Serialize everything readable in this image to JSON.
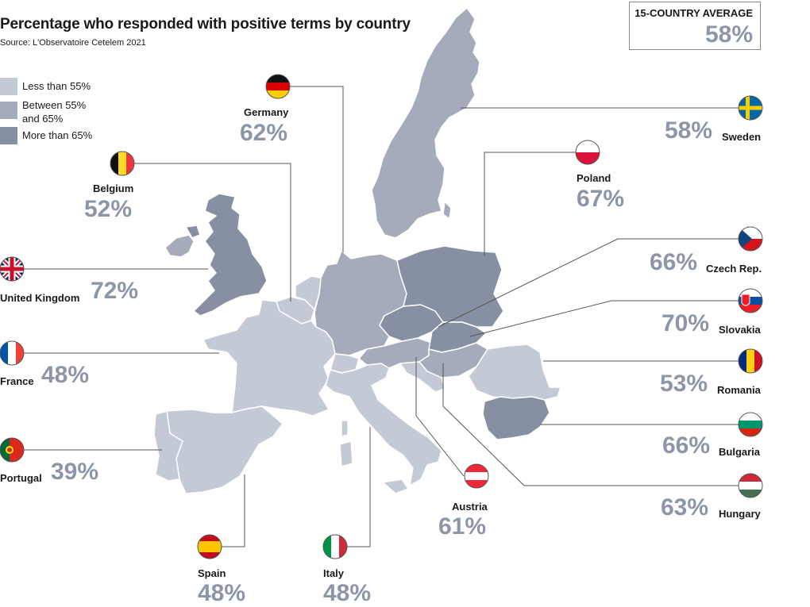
{
  "header": {
    "title": "Percentage who responded with positive terms by country",
    "source": "Source: L'Observatoire Cetelem 2021"
  },
  "average": {
    "label": "15-COUNTRY AVERAGE",
    "value": "58%"
  },
  "legend": [
    {
      "label": "Less than 55%",
      "color": "#c4c9d6"
    },
    {
      "label": "Between 55% and 65%",
      "color": "#a5abbb"
    },
    {
      "label": "More than 65%",
      "color": "#8790a2"
    }
  ],
  "colors": {
    "sea": "#ffffff",
    "value_text": "#8c96a8",
    "leader": "#555555",
    "border": "#ffffff"
  },
  "countries": {
    "germany": {
      "name": "Germany",
      "value": "62%",
      "flag_icon": "germany-flag-icon"
    },
    "belgium": {
      "name": "Belgium",
      "value": "52%",
      "flag_icon": "belgium-flag-icon"
    },
    "united_kingdom": {
      "name": "United Kingdom",
      "value": "72%",
      "flag_icon": "united-kingdom-flag-icon"
    },
    "france": {
      "name": "France",
      "value": "48%",
      "flag_icon": "france-flag-icon"
    },
    "portugal": {
      "name": "Portugal",
      "value": "39%",
      "flag_icon": "portugal-flag-icon"
    },
    "spain": {
      "name": "Spain",
      "value": "48%",
      "flag_icon": "spain-flag-icon"
    },
    "italy": {
      "name": "Italy",
      "value": "48%",
      "flag_icon": "italy-flag-icon"
    },
    "austria": {
      "name": "Austria",
      "value": "61%",
      "flag_icon": "austria-flag-icon"
    },
    "sweden": {
      "name": "Sweden",
      "value": "58%",
      "flag_icon": "sweden-flag-icon"
    },
    "poland": {
      "name": "Poland",
      "value": "67%",
      "flag_icon": "poland-flag-icon"
    },
    "czech": {
      "name": "Czech Rep.",
      "value": "66%",
      "flag_icon": "czech-flag-icon"
    },
    "slovakia": {
      "name": "Slovakia",
      "value": "70%",
      "flag_icon": "slovakia-flag-icon"
    },
    "romania": {
      "name": "Romania",
      "value": "53%",
      "flag_icon": "romania-flag-icon"
    },
    "bulgaria": {
      "name": "Bulgaria",
      "value": "66%",
      "flag_icon": "bulgaria-flag-icon"
    },
    "hungary": {
      "name": "Hungary",
      "value": "63%",
      "flag_icon": "hungary-flag-icon"
    }
  }
}
